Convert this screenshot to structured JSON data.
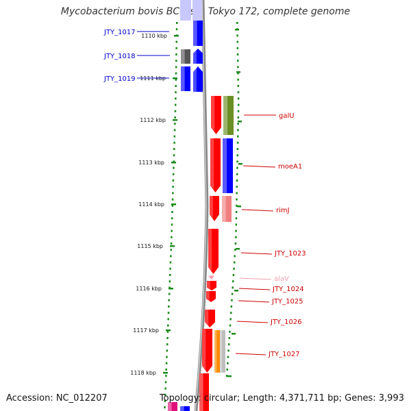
{
  "title": "Mycobacterium bovis BCG str. Tokyo 172, complete genome",
  "footer": {
    "accession": "Accession: NC_012207",
    "topology": "Topology: circular; Length: 4,371,711 bp; Genes: 3,993"
  },
  "colors": {
    "forward_strand": "#ff0000",
    "reverse_strand": "#0000ff",
    "tick_mark": "#1a8a1a",
    "backbone": "#888888"
  },
  "ticks": [
    "1110 kbp",
    "1111 kbp",
    "1112 kbp",
    "1113 kbp",
    "1114 kbp",
    "1115 kbp",
    "1116 kbp",
    "1117 kbp",
    "1118 kbp"
  ],
  "genes_left": [
    {
      "name": "JTY_1017",
      "color": "#0000cc"
    },
    {
      "name": "JTY_1018",
      "color": "#0000cc"
    },
    {
      "name": "JTY_1019",
      "color": "#0000cc"
    }
  ],
  "genes_right": [
    {
      "name": "galU",
      "color": "#cc0000"
    },
    {
      "name": "moeA1",
      "color": "#cc0000"
    },
    {
      "name": "rimJ",
      "color": "#cc0000"
    },
    {
      "name": "JTY_1023",
      "color": "#cc0000"
    },
    {
      "name": "alaV",
      "color": "#f0a0b0"
    },
    {
      "name": "JTY_1024",
      "color": "#cc0000"
    },
    {
      "name": "JTY_1025",
      "color": "#cc0000"
    },
    {
      "name": "JTY_1026",
      "color": "#cc0000"
    },
    {
      "name": "JTY_1027",
      "color": "#cc0000"
    }
  ]
}
